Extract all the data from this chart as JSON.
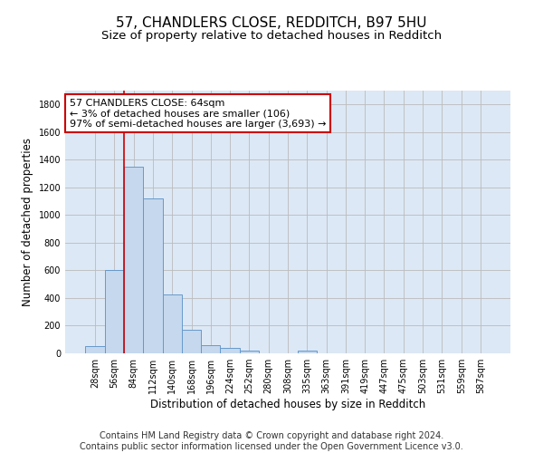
{
  "title": "57, CHANDLERS CLOSE, REDDITCH, B97 5HU",
  "subtitle": "Size of property relative to detached houses in Redditch",
  "xlabel": "Distribution of detached houses by size in Redditch",
  "ylabel": "Number of detached properties",
  "bar_color": "#c5d8ee",
  "bar_edge_color": "#6699cc",
  "background_color": "#ffffff",
  "plot_bg_color": "#dce8f5",
  "grid_color": "#bbbbbb",
  "annotation_line_color": "#cc0000",
  "annotation_box_color": "#cc0000",
  "annotation_text": "57 CHANDLERS CLOSE: 64sqm\n← 3% of detached houses are smaller (106)\n97% of semi-detached houses are larger (3,693) →",
  "property_size": 64,
  "categories": [
    "28sqm",
    "56sqm",
    "84sqm",
    "112sqm",
    "140sqm",
    "168sqm",
    "196sqm",
    "224sqm",
    "252sqm",
    "280sqm",
    "308sqm",
    "335sqm",
    "363sqm",
    "391sqm",
    "419sqm",
    "447sqm",
    "475sqm",
    "503sqm",
    "531sqm",
    "559sqm",
    "587sqm"
  ],
  "values": [
    50,
    600,
    1350,
    1120,
    425,
    170,
    60,
    40,
    20,
    0,
    0,
    20,
    0,
    0,
    0,
    0,
    0,
    0,
    0,
    0,
    0
  ],
  "ylim": [
    0,
    1900
  ],
  "yticks": [
    0,
    200,
    400,
    600,
    800,
    1000,
    1200,
    1400,
    1600,
    1800
  ],
  "footer": "Contains HM Land Registry data © Crown copyright and database right 2024.\nContains public sector information licensed under the Open Government Licence v3.0.",
  "title_fontsize": 11,
  "subtitle_fontsize": 9.5,
  "ylabel_fontsize": 8.5,
  "xlabel_fontsize": 8.5,
  "tick_fontsize": 7,
  "annotation_fontsize": 8,
  "footer_fontsize": 7
}
